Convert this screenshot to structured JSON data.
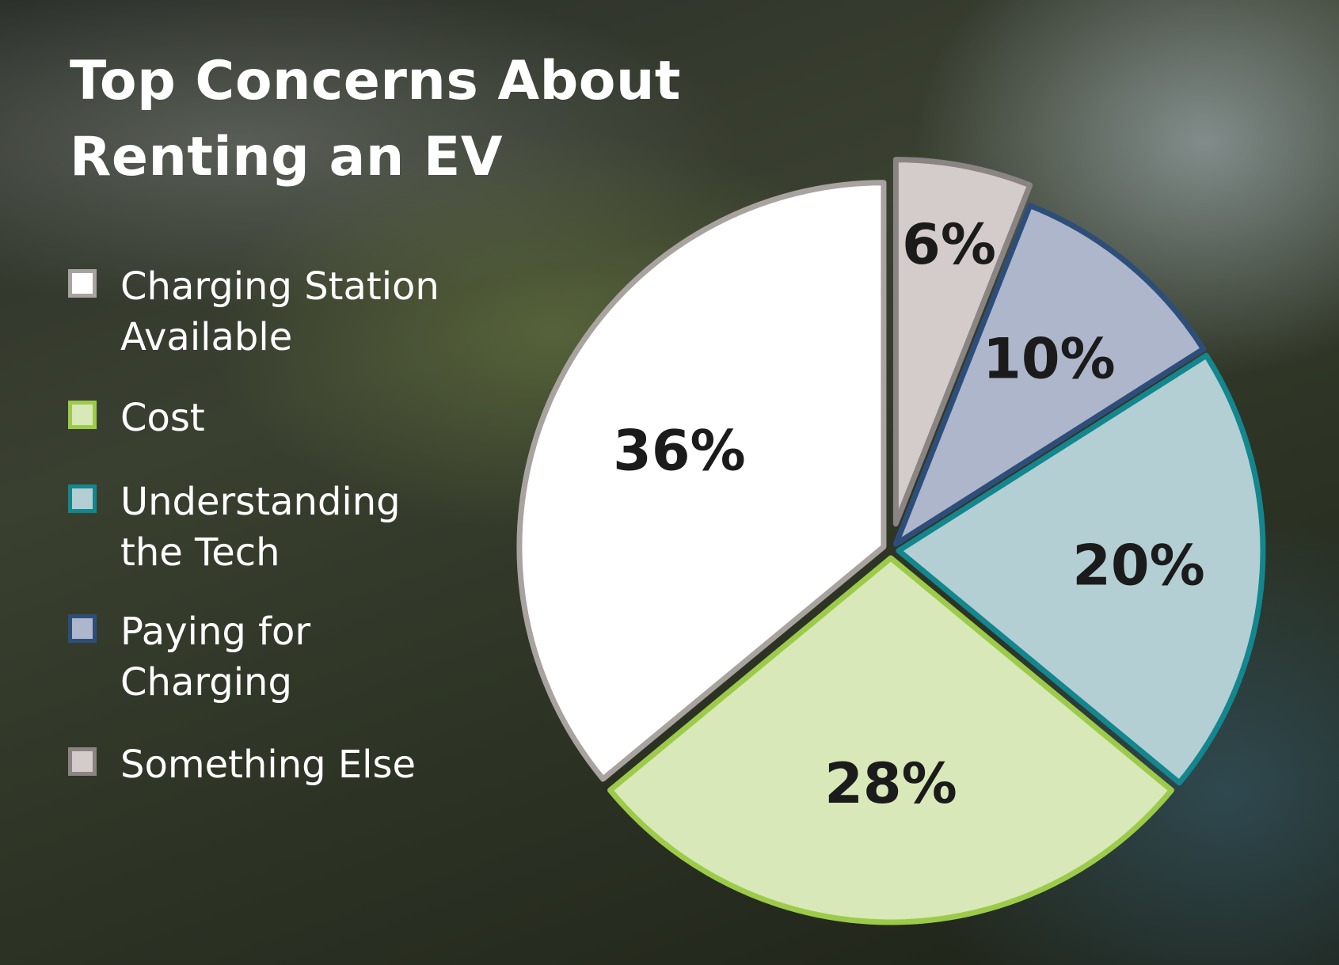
{
  "chart_data": {
    "type": "pie",
    "title_lines": [
      "Top Concerns About",
      "Renting an EV"
    ],
    "legend_position": "left",
    "slices": [
      {
        "label_lines": [
          "Charging Station",
          "Available"
        ],
        "value": 36,
        "display": "36%",
        "fill": "#ffffff",
        "stroke": "#a9a3a0"
      },
      {
        "label_lines": [
          "Cost"
        ],
        "value": 28,
        "display": "28%",
        "fill": "#d9e8b8",
        "stroke": "#9ccb4a"
      },
      {
        "label_lines": [
          "Understanding",
          "the Tech"
        ],
        "value": 20,
        "display": "20%",
        "fill": "#b3cfd3",
        "stroke": "#13868e"
      },
      {
        "label_lines": [
          "Paying for",
          "Charging"
        ],
        "value": 10,
        "display": "10%",
        "fill": "#aeb6cc",
        "stroke": "#2e4e7a"
      },
      {
        "label_lines": [
          "Something Else"
        ],
        "value": 6,
        "display": "6%",
        "fill": "#d3ccca",
        "stroke": "#8a8482"
      }
    ]
  }
}
